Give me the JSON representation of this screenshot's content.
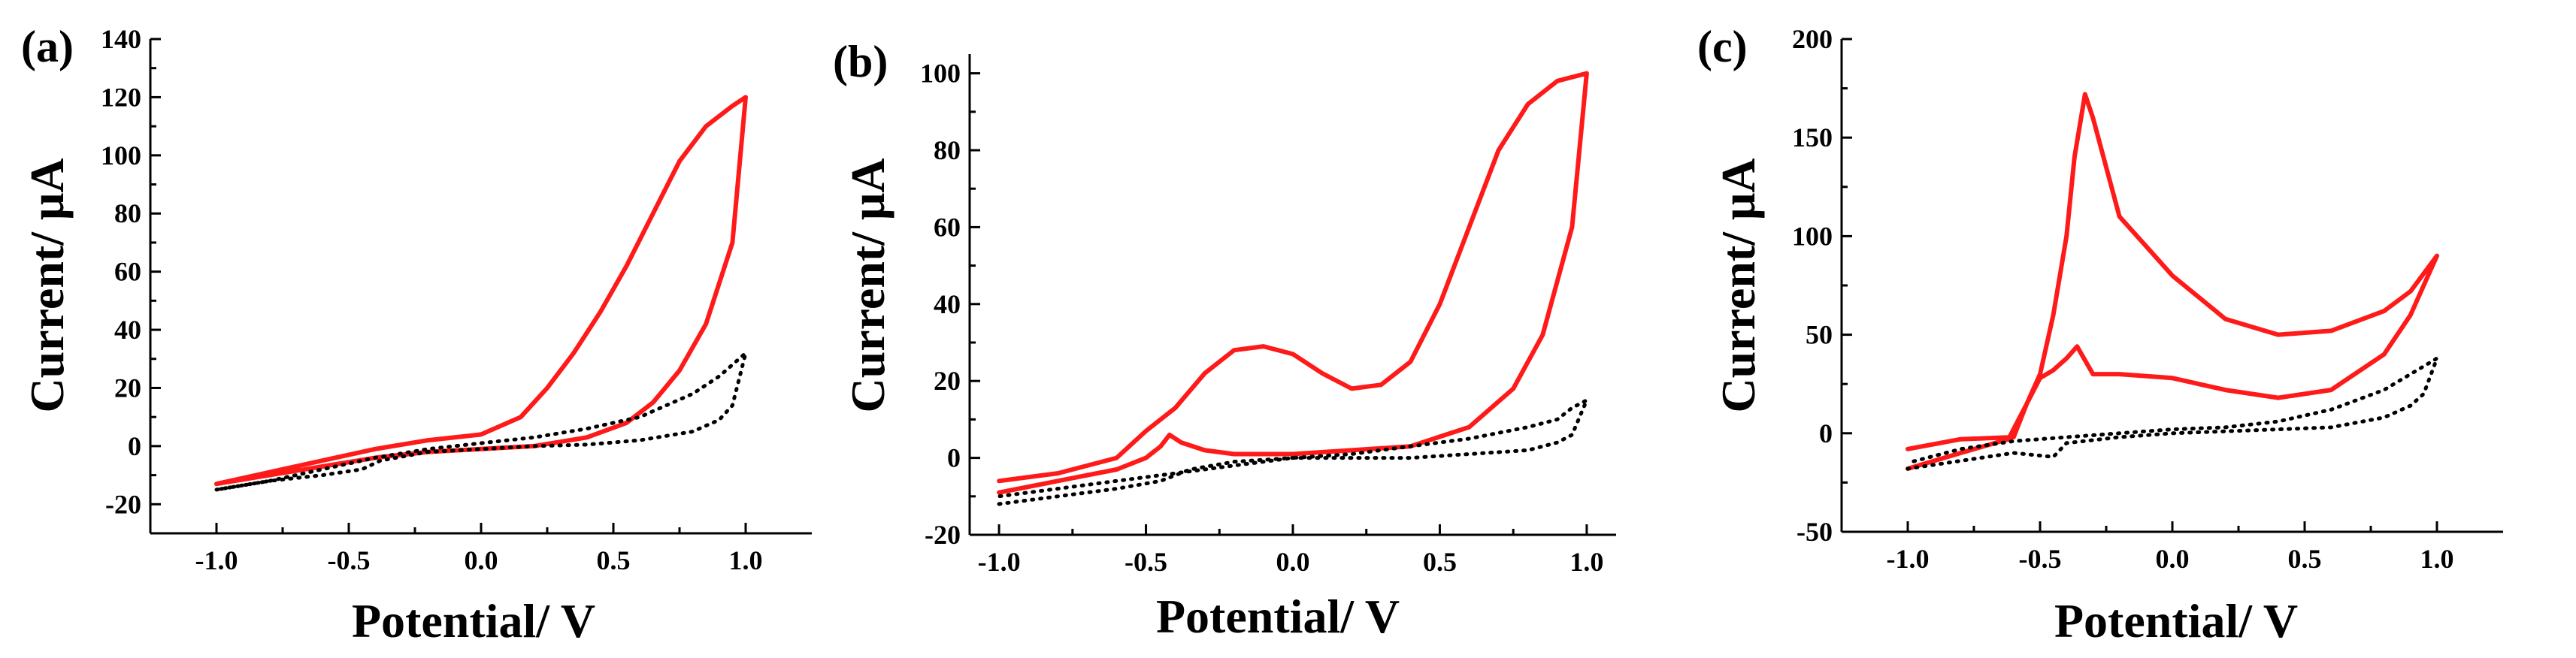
{
  "colors": {
    "sample": "#ff1a1a",
    "blank": "#000000"
  },
  "chart_data": [
    {
      "type": "line",
      "panel_label": "(a)",
      "xlabel": "Potential/ V",
      "ylabel": "Current/ μA",
      "xlim": [
        -1.25,
        1.25
      ],
      "ylim": [
        -30,
        140
      ],
      "xticks": [
        -1.0,
        -0.5,
        0.0,
        0.5,
        1.0
      ],
      "xtick_labels": [
        "-1.0",
        "-0.5",
        "0.0",
        "0.5",
        "1.0"
      ],
      "yticks": [
        -20,
        0,
        20,
        40,
        60,
        80,
        100,
        120,
        140
      ],
      "ytick_labels": [
        "-20",
        "0",
        "20",
        "40",
        "60",
        "80",
        "100",
        "120",
        "140"
      ],
      "series": [
        {
          "name": "red-cv",
          "style": "solid",
          "color": "#ff1a1a",
          "x": [
            -1.0,
            -0.8,
            -0.6,
            -0.4,
            -0.2,
            0.0,
            0.2,
            0.4,
            0.55,
            0.65,
            0.75,
            0.85,
            0.95,
            1.0,
            0.95,
            0.85,
            0.75,
            0.65,
            0.55,
            0.45,
            0.35,
            0.25,
            0.15,
            0.0,
            -0.2,
            -0.4,
            -0.6,
            -0.8,
            -1.0
          ],
          "y": [
            -13,
            -10,
            -7,
            -4,
            -2,
            -1,
            0,
            3,
            8,
            15,
            26,
            42,
            70,
            120,
            117,
            110,
            98,
            80,
            62,
            46,
            32,
            20,
            10,
            4,
            2,
            -1,
            -5,
            -9,
            -13
          ]
        },
        {
          "name": "blank-cv",
          "style": "dotted",
          "color": "#000000",
          "x": [
            -1.0,
            -0.8,
            -0.6,
            -0.45,
            -0.38,
            -0.2,
            0.0,
            0.2,
            0.4,
            0.6,
            0.8,
            0.9,
            0.95,
            1.0,
            0.95,
            0.9,
            0.8,
            0.6,
            0.4,
            0.2,
            0.0,
            -0.2,
            -0.4,
            -0.6,
            -0.8,
            -1.0
          ],
          "y": [
            -15,
            -12,
            -10,
            -8,
            -5,
            -2,
            -1,
            0,
            0.5,
            2,
            5,
            9,
            14,
            32,
            28,
            24,
            18,
            10,
            6,
            3,
            1,
            -1,
            -4,
            -8,
            -12,
            -15
          ]
        }
      ]
    },
    {
      "type": "line",
      "panel_label": "(b)",
      "xlabel": "Potential/ V",
      "ylabel": "Current/ μA",
      "xlim": [
        -1.1,
        1.1
      ],
      "ylim": [
        -20,
        105
      ],
      "xticks": [
        -1.0,
        -0.5,
        0.0,
        0.5,
        1.0
      ],
      "xtick_labels": [
        "-1.0",
        "-0.5",
        "0.0",
        "0.5",
        "1.0"
      ],
      "yticks": [
        -20,
        0,
        20,
        40,
        60,
        80,
        100
      ],
      "ytick_labels": [
        "-20",
        "0",
        "20",
        "40",
        "60",
        "80",
        "100"
      ],
      "series": [
        {
          "name": "red-cv",
          "style": "solid",
          "color": "#ff1a1a",
          "x": [
            -1.0,
            -0.8,
            -0.6,
            -0.5,
            -0.45,
            -0.42,
            -0.38,
            -0.3,
            -0.2,
            0.0,
            0.2,
            0.4,
            0.6,
            0.75,
            0.85,
            0.95,
            1.0,
            0.9,
            0.8,
            0.7,
            0.6,
            0.5,
            0.4,
            0.3,
            0.2,
            0.1,
            0.0,
            -0.1,
            -0.2,
            -0.3,
            -0.4,
            -0.5,
            -0.6,
            -0.8,
            -1.0
          ],
          "y": [
            -9,
            -6,
            -3,
            0,
            3,
            6,
            4,
            2,
            1,
            1,
            2,
            3,
            8,
            18,
            32,
            60,
            100,
            98,
            92,
            80,
            60,
            40,
            25,
            19,
            18,
            22,
            27,
            29,
            28,
            22,
            13,
            7,
            0,
            -4,
            -6
          ]
        },
        {
          "name": "blank-cv",
          "style": "dotted",
          "color": "#000000",
          "x": [
            -1.0,
            -0.8,
            -0.6,
            -0.45,
            -0.35,
            -0.2,
            0.0,
            0.2,
            0.4,
            0.6,
            0.8,
            0.9,
            0.95,
            1.0,
            0.95,
            0.9,
            0.8,
            0.6,
            0.4,
            0.2,
            0.0,
            -0.2,
            -0.4,
            -0.6,
            -0.8,
            -1.0
          ],
          "y": [
            -12,
            -10,
            -8,
            -6,
            -3,
            -1,
            0,
            0,
            0,
            1,
            2,
            4,
            6,
            15,
            13,
            10,
            8,
            5,
            3,
            1,
            0,
            -2,
            -4,
            -6,
            -8,
            -10
          ]
        }
      ]
    },
    {
      "type": "line",
      "panel_label": "(c)",
      "xlabel": "Potential/ V",
      "ylabel": "Current/ μA",
      "xlim": [
        -1.25,
        1.25
      ],
      "ylim": [
        -50,
        200
      ],
      "xticks": [
        -1.0,
        -0.5,
        0.0,
        0.5,
        1.0
      ],
      "xtick_labels": [
        "-1.0",
        "-0.5",
        "0.0",
        "0.5",
        "1.0"
      ],
      "yticks": [
        -50,
        0,
        50,
        100,
        150,
        200
      ],
      "ytick_labels": [
        "-50",
        "0",
        "50",
        "100",
        "150",
        "200"
      ],
      "series": [
        {
          "name": "red-cv",
          "style": "solid",
          "color": "#ff1a1a",
          "x": [
            -1.0,
            -0.8,
            -0.62,
            -0.55,
            -0.5,
            -0.45,
            -0.4,
            -0.37,
            -0.33,
            -0.3,
            -0.2,
            -0.1,
            0.0,
            0.2,
            0.4,
            0.6,
            0.8,
            0.9,
            1.0,
            0.9,
            0.8,
            0.6,
            0.4,
            0.2,
            0.0,
            -0.2,
            -0.3,
            -0.36,
            -0.4,
            -0.45,
            -0.5,
            -0.55,
            -0.6,
            -0.8,
            -1.0
          ],
          "y": [
            -18,
            -10,
            -3,
            15,
            30,
            60,
            100,
            140,
            172,
            160,
            110,
            95,
            80,
            58,
            50,
            52,
            62,
            72,
            90,
            60,
            40,
            22,
            18,
            22,
            28,
            30,
            30,
            44,
            38,
            32,
            28,
            15,
            -2,
            -3,
            -8
          ]
        },
        {
          "name": "blank-cv",
          "style": "dotted",
          "color": "#000000",
          "x": [
            -1.0,
            -0.8,
            -0.6,
            -0.45,
            -0.4,
            -0.2,
            0.0,
            0.2,
            0.4,
            0.6,
            0.8,
            0.9,
            0.95,
            1.0,
            0.95,
            0.9,
            0.8,
            0.6,
            0.4,
            0.2,
            0.0,
            -0.2,
            -0.4,
            -0.6,
            -0.8,
            -1.0
          ],
          "y": [
            -18,
            -14,
            -10,
            -12,
            -5,
            -2,
            0,
            1,
            2,
            3,
            8,
            14,
            20,
            38,
            34,
            30,
            22,
            12,
            6,
            3,
            2,
            0,
            -2,
            -4,
            -8,
            -15
          ]
        }
      ]
    }
  ]
}
